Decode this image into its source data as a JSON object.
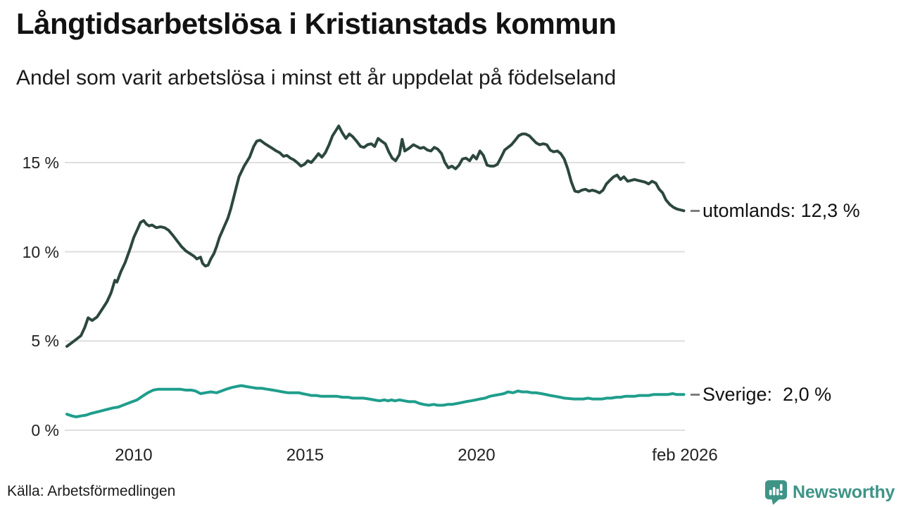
{
  "header": {
    "title": "Långtidsarbetslösa i Kristianstads kommun",
    "subtitle": "Andel som varit arbetslösa i minst ett år uppdelat på födelseland"
  },
  "footer": {
    "source": "Källa: Arbetsförmedlingen",
    "brand": "Newsworthy"
  },
  "colors": {
    "utomlands_line": "#2c473e",
    "sverige_line": "#1f9e8c",
    "grid": "#dedede",
    "brand": "#3e9487",
    "connector": "#7d7d7d",
    "text": "#111111"
  },
  "chart_data": {
    "type": "line",
    "title": "Långtidsarbetslösa i Kristianstads kommun",
    "subtitle": "Andel som varit arbetslösa i minst ett år uppdelat på födelseland",
    "unit": "%",
    "grid": true,
    "legend_position": "end-of-line",
    "x_axis": {
      "label": "",
      "range": [
        2008.05,
        2026.08
      ],
      "ticks": [
        {
          "label": "2010",
          "year": 2010
        },
        {
          "label": "2015",
          "year": 2015
        },
        {
          "label": "2020",
          "year": 2020
        },
        {
          "label": "feb 2026",
          "year": 2026.08
        }
      ]
    },
    "y_axis": {
      "label": "",
      "range": [
        0,
        17.4
      ],
      "ticks": [
        {
          "label": "0 %",
          "value": 0
        },
        {
          "label": "5 %",
          "value": 5
        },
        {
          "label": "10 %",
          "value": 10
        },
        {
          "label": "15 %",
          "value": 15
        }
      ]
    },
    "series": [
      {
        "name": "utomlands",
        "end_label": "utomlands: 12,3 %",
        "last_value": 12.3,
        "color": "#2c473e",
        "points": [
          [
            2008.05,
            4.7
          ],
          [
            2008.26,
            5.0
          ],
          [
            2008.46,
            5.3
          ],
          [
            2008.57,
            5.75
          ],
          [
            2008.67,
            6.3
          ],
          [
            2008.79,
            6.15
          ],
          [
            2008.93,
            6.35
          ],
          [
            2009.12,
            6.9
          ],
          [
            2009.22,
            7.2
          ],
          [
            2009.34,
            7.7
          ],
          [
            2009.45,
            8.4
          ],
          [
            2009.51,
            8.3
          ],
          [
            2009.63,
            8.9
          ],
          [
            2009.75,
            9.4
          ],
          [
            2009.9,
            10.2
          ],
          [
            2010.0,
            10.8
          ],
          [
            2010.12,
            11.3
          ],
          [
            2010.2,
            11.65
          ],
          [
            2010.29,
            11.75
          ],
          [
            2010.37,
            11.55
          ],
          [
            2010.45,
            11.45
          ],
          [
            2010.53,
            11.5
          ],
          [
            2010.66,
            11.35
          ],
          [
            2010.78,
            11.4
          ],
          [
            2010.9,
            11.35
          ],
          [
            2011.02,
            11.2
          ],
          [
            2011.15,
            10.9
          ],
          [
            2011.27,
            10.6
          ],
          [
            2011.39,
            10.3
          ],
          [
            2011.52,
            10.05
          ],
          [
            2011.64,
            9.9
          ],
          [
            2011.76,
            9.75
          ],
          [
            2011.84,
            9.6
          ],
          [
            2011.95,
            9.7
          ],
          [
            2012.01,
            9.35
          ],
          [
            2012.09,
            9.2
          ],
          [
            2012.17,
            9.25
          ],
          [
            2012.25,
            9.6
          ],
          [
            2012.34,
            9.9
          ],
          [
            2012.42,
            10.3
          ],
          [
            2012.5,
            10.8
          ],
          [
            2012.58,
            11.15
          ],
          [
            2012.66,
            11.5
          ],
          [
            2012.75,
            11.9
          ],
          [
            2012.83,
            12.4
          ],
          [
            2012.91,
            13.0
          ],
          [
            2012.99,
            13.6
          ],
          [
            2013.07,
            14.2
          ],
          [
            2013.22,
            14.8
          ],
          [
            2013.38,
            15.3
          ],
          [
            2013.5,
            15.9
          ],
          [
            2013.59,
            16.2
          ],
          [
            2013.69,
            16.25
          ],
          [
            2013.83,
            16.05
          ],
          [
            2014.04,
            15.8
          ],
          [
            2014.16,
            15.65
          ],
          [
            2014.26,
            15.55
          ],
          [
            2014.37,
            15.35
          ],
          [
            2014.47,
            15.4
          ],
          [
            2014.57,
            15.25
          ],
          [
            2014.67,
            15.15
          ],
          [
            2014.77,
            15.0
          ],
          [
            2014.88,
            14.8
          ],
          [
            2014.98,
            14.9
          ],
          [
            2015.08,
            15.1
          ],
          [
            2015.18,
            15.0
          ],
          [
            2015.29,
            15.25
          ],
          [
            2015.39,
            15.5
          ],
          [
            2015.49,
            15.3
          ],
          [
            2015.59,
            15.55
          ],
          [
            2015.7,
            16.0
          ],
          [
            2015.8,
            16.5
          ],
          [
            2015.9,
            16.8
          ],
          [
            2015.98,
            17.05
          ],
          [
            2016.09,
            16.65
          ],
          [
            2016.19,
            16.35
          ],
          [
            2016.29,
            16.6
          ],
          [
            2016.39,
            16.45
          ],
          [
            2016.5,
            16.2
          ],
          [
            2016.62,
            15.9
          ],
          [
            2016.72,
            15.85
          ],
          [
            2016.82,
            16.0
          ],
          [
            2016.93,
            16.05
          ],
          [
            2017.03,
            15.9
          ],
          [
            2017.13,
            16.35
          ],
          [
            2017.23,
            16.2
          ],
          [
            2017.34,
            16.05
          ],
          [
            2017.44,
            15.6
          ],
          [
            2017.54,
            15.25
          ],
          [
            2017.64,
            15.1
          ],
          [
            2017.75,
            15.45
          ],
          [
            2017.83,
            16.3
          ],
          [
            2017.91,
            15.65
          ],
          [
            2018.03,
            15.8
          ],
          [
            2018.16,
            16.0
          ],
          [
            2018.26,
            15.9
          ],
          [
            2018.36,
            15.8
          ],
          [
            2018.46,
            15.85
          ],
          [
            2018.57,
            15.7
          ],
          [
            2018.67,
            15.65
          ],
          [
            2018.77,
            15.85
          ],
          [
            2018.87,
            15.75
          ],
          [
            2018.98,
            15.5
          ],
          [
            2019.08,
            15.0
          ],
          [
            2019.18,
            14.7
          ],
          [
            2019.28,
            14.8
          ],
          [
            2019.39,
            14.65
          ],
          [
            2019.49,
            14.85
          ],
          [
            2019.59,
            15.2
          ],
          [
            2019.69,
            15.25
          ],
          [
            2019.8,
            15.1
          ],
          [
            2019.9,
            15.4
          ],
          [
            2020.0,
            15.2
          ],
          [
            2020.1,
            15.65
          ],
          [
            2020.2,
            15.4
          ],
          [
            2020.31,
            14.85
          ],
          [
            2020.41,
            14.8
          ],
          [
            2020.51,
            14.8
          ],
          [
            2020.61,
            14.9
          ],
          [
            2020.72,
            15.3
          ],
          [
            2020.82,
            15.7
          ],
          [
            2020.92,
            15.85
          ],
          [
            2021.02,
            16.0
          ],
          [
            2021.13,
            16.25
          ],
          [
            2021.23,
            16.5
          ],
          [
            2021.33,
            16.6
          ],
          [
            2021.43,
            16.6
          ],
          [
            2021.54,
            16.5
          ],
          [
            2021.64,
            16.3
          ],
          [
            2021.74,
            16.1
          ],
          [
            2021.84,
            16.0
          ],
          [
            2021.95,
            16.05
          ],
          [
            2022.05,
            16.0
          ],
          [
            2022.15,
            15.7
          ],
          [
            2022.25,
            15.6
          ],
          [
            2022.36,
            15.65
          ],
          [
            2022.46,
            15.5
          ],
          [
            2022.56,
            15.2
          ],
          [
            2022.66,
            14.65
          ],
          [
            2022.77,
            13.9
          ],
          [
            2022.87,
            13.4
          ],
          [
            2022.97,
            13.35
          ],
          [
            2023.07,
            13.45
          ],
          [
            2023.18,
            13.5
          ],
          [
            2023.28,
            13.4
          ],
          [
            2023.38,
            13.45
          ],
          [
            2023.48,
            13.4
          ],
          [
            2023.59,
            13.3
          ],
          [
            2023.69,
            13.45
          ],
          [
            2023.79,
            13.8
          ],
          [
            2023.89,
            14.0
          ],
          [
            2024.0,
            14.2
          ],
          [
            2024.1,
            14.3
          ],
          [
            2024.2,
            14.05
          ],
          [
            2024.3,
            14.2
          ],
          [
            2024.41,
            13.95
          ],
          [
            2024.51,
            14.0
          ],
          [
            2024.61,
            14.05
          ],
          [
            2024.71,
            14.0
          ],
          [
            2024.82,
            13.95
          ],
          [
            2024.92,
            13.9
          ],
          [
            2025.02,
            13.8
          ],
          [
            2025.12,
            13.95
          ],
          [
            2025.23,
            13.85
          ],
          [
            2025.33,
            13.5
          ],
          [
            2025.43,
            13.3
          ],
          [
            2025.53,
            12.9
          ],
          [
            2025.64,
            12.65
          ],
          [
            2025.74,
            12.5
          ],
          [
            2025.84,
            12.4
          ],
          [
            2025.94,
            12.35
          ],
          [
            2026.05,
            12.3
          ]
        ]
      },
      {
        "name": "Sverige",
        "end_label": "Sverige:  2,0 %",
        "last_value": 2.0,
        "color": "#1f9e8c",
        "points": [
          [
            2008.05,
            0.9
          ],
          [
            2008.2,
            0.8
          ],
          [
            2008.32,
            0.75
          ],
          [
            2008.46,
            0.8
          ],
          [
            2008.61,
            0.85
          ],
          [
            2008.77,
            0.95
          ],
          [
            2008.98,
            1.05
          ],
          [
            2009.18,
            1.15
          ],
          [
            2009.39,
            1.25
          ],
          [
            2009.55,
            1.3
          ],
          [
            2009.75,
            1.45
          ],
          [
            2009.96,
            1.6
          ],
          [
            2010.1,
            1.7
          ],
          [
            2010.25,
            1.9
          ],
          [
            2010.41,
            2.1
          ],
          [
            2010.57,
            2.25
          ],
          [
            2010.72,
            2.3
          ],
          [
            2011.02,
            2.3
          ],
          [
            2011.35,
            2.3
          ],
          [
            2011.52,
            2.25
          ],
          [
            2011.68,
            2.25
          ],
          [
            2011.8,
            2.2
          ],
          [
            2011.95,
            2.05
          ],
          [
            2012.09,
            2.1
          ],
          [
            2012.25,
            2.15
          ],
          [
            2012.42,
            2.1
          ],
          [
            2012.56,
            2.2
          ],
          [
            2012.7,
            2.3
          ],
          [
            2012.87,
            2.4
          ],
          [
            2012.99,
            2.45
          ],
          [
            2013.14,
            2.5
          ],
          [
            2013.28,
            2.45
          ],
          [
            2013.44,
            2.4
          ],
          [
            2013.59,
            2.35
          ],
          [
            2013.73,
            2.35
          ],
          [
            2013.89,
            2.3
          ],
          [
            2014.06,
            2.25
          ],
          [
            2014.2,
            2.2
          ],
          [
            2014.34,
            2.15
          ],
          [
            2014.51,
            2.1
          ],
          [
            2014.82,
            2.1
          ],
          [
            2014.92,
            2.05
          ],
          [
            2015.06,
            2.0
          ],
          [
            2015.18,
            1.95
          ],
          [
            2015.33,
            1.95
          ],
          [
            2015.47,
            1.9
          ],
          [
            2015.94,
            1.9
          ],
          [
            2016.09,
            1.85
          ],
          [
            2016.25,
            1.85
          ],
          [
            2016.39,
            1.8
          ],
          [
            2016.7,
            1.8
          ],
          [
            2016.87,
            1.75
          ],
          [
            2017.01,
            1.7
          ],
          [
            2017.17,
            1.65
          ],
          [
            2017.32,
            1.7
          ],
          [
            2017.42,
            1.65
          ],
          [
            2017.52,
            1.7
          ],
          [
            2017.62,
            1.65
          ],
          [
            2017.75,
            1.7
          ],
          [
            2017.89,
            1.65
          ],
          [
            2018.03,
            1.6
          ],
          [
            2018.2,
            1.6
          ],
          [
            2018.34,
            1.5
          ],
          [
            2018.46,
            1.45
          ],
          [
            2018.61,
            1.4
          ],
          [
            2018.75,
            1.45
          ],
          [
            2018.87,
            1.4
          ],
          [
            2019.02,
            1.4
          ],
          [
            2019.16,
            1.45
          ],
          [
            2019.28,
            1.45
          ],
          [
            2019.43,
            1.5
          ],
          [
            2019.57,
            1.55
          ],
          [
            2019.69,
            1.6
          ],
          [
            2019.84,
            1.65
          ],
          [
            2019.98,
            1.7
          ],
          [
            2020.1,
            1.75
          ],
          [
            2020.25,
            1.8
          ],
          [
            2020.39,
            1.9
          ],
          [
            2020.51,
            1.95
          ],
          [
            2020.66,
            2.0
          ],
          [
            2020.8,
            2.05
          ],
          [
            2020.92,
            2.15
          ],
          [
            2021.07,
            2.1
          ],
          [
            2021.21,
            2.2
          ],
          [
            2021.33,
            2.15
          ],
          [
            2021.48,
            2.15
          ],
          [
            2021.62,
            2.1
          ],
          [
            2021.74,
            2.1
          ],
          [
            2021.89,
            2.05
          ],
          [
            2022.03,
            2.0
          ],
          [
            2022.15,
            1.95
          ],
          [
            2022.3,
            1.9
          ],
          [
            2022.44,
            1.85
          ],
          [
            2022.56,
            1.8
          ],
          [
            2022.85,
            1.75
          ],
          [
            2023.11,
            1.75
          ],
          [
            2023.26,
            1.8
          ],
          [
            2023.38,
            1.75
          ],
          [
            2023.67,
            1.75
          ],
          [
            2023.79,
            1.8
          ],
          [
            2023.93,
            1.8
          ],
          [
            2024.08,
            1.85
          ],
          [
            2024.2,
            1.85
          ],
          [
            2024.34,
            1.9
          ],
          [
            2024.61,
            1.9
          ],
          [
            2024.75,
            1.95
          ],
          [
            2025.02,
            1.95
          ],
          [
            2025.16,
            2.0
          ],
          [
            2025.57,
            2.0
          ],
          [
            2025.72,
            2.05
          ],
          [
            2025.84,
            2.0
          ],
          [
            2026.05,
            2.0
          ]
        ]
      }
    ]
  }
}
